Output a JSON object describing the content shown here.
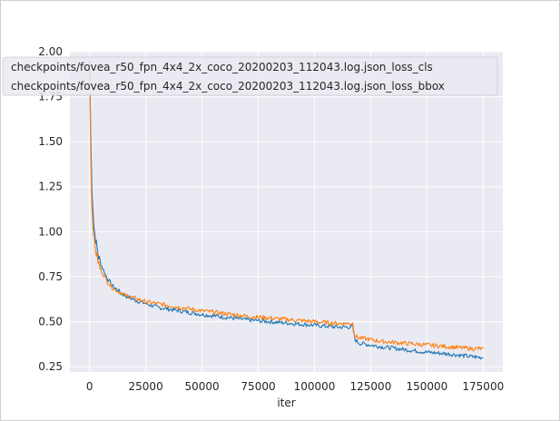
{
  "chart_data": {
    "type": "line",
    "title": "",
    "xlabel": "iter",
    "ylabel": "",
    "xlim": [
      -8750,
      183750
    ],
    "ylim": [
      0.22,
      2.0
    ],
    "grid": true,
    "legend_placement": "upper-left",
    "x_ticks": [
      {
        "value": 0,
        "label": "0"
      },
      {
        "value": 25000,
        "label": "25000"
      },
      {
        "value": 50000,
        "label": "50000"
      },
      {
        "value": 75000,
        "label": "75000"
      },
      {
        "value": 100000,
        "label": "100000"
      },
      {
        "value": 125000,
        "label": "125000"
      },
      {
        "value": 150000,
        "label": "150000"
      },
      {
        "value": 175000,
        "label": "175000"
      }
    ],
    "y_ticks": [
      {
        "value": 0.25,
        "label": "0.25"
      },
      {
        "value": 0.5,
        "label": "0.50"
      },
      {
        "value": 0.75,
        "label": "0.75"
      },
      {
        "value": 1.0,
        "label": "1.00"
      },
      {
        "value": 1.25,
        "label": "1.25"
      },
      {
        "value": 1.5,
        "label": "1.50"
      },
      {
        "value": 1.75,
        "label": "1.75"
      },
      {
        "value": 2.0,
        "label": "2.00"
      }
    ],
    "series": [
      {
        "name": "checkpoints/fovea_r50_fpn_4x4_2x_coco_20200203_112043.log.json_loss_cls",
        "color": "#1f77b4",
        "x": [
          0,
          500,
          1000,
          2000,
          3000,
          4000,
          5000,
          7500,
          10000,
          15000,
          20000,
          25000,
          30000,
          40000,
          50000,
          60000,
          70000,
          80000,
          90000,
          100000,
          110000,
          117000,
          118000,
          120000,
          130000,
          140000,
          150000,
          160000,
          170000,
          175000
        ],
        "y": [
          1.95,
          1.55,
          1.25,
          1.02,
          0.93,
          0.86,
          0.82,
          0.75,
          0.7,
          0.65,
          0.62,
          0.6,
          0.58,
          0.56,
          0.54,
          0.525,
          0.51,
          0.5,
          0.49,
          0.48,
          0.47,
          0.47,
          0.4,
          0.38,
          0.36,
          0.345,
          0.33,
          0.32,
          0.305,
          0.3
        ]
      },
      {
        "name": "checkpoints/fovea_r50_fpn_4x4_2x_coco_20200203_112043.log.json_loss_bbox",
        "color": "#ff7f0e",
        "x": [
          0,
          500,
          1000,
          2000,
          3000,
          4000,
          5000,
          7500,
          10000,
          15000,
          20000,
          25000,
          30000,
          40000,
          50000,
          60000,
          70000,
          80000,
          90000,
          100000,
          110000,
          117000,
          118000,
          120000,
          130000,
          140000,
          150000,
          160000,
          170000,
          175000
        ],
        "y": [
          1.9,
          1.45,
          1.15,
          0.95,
          0.88,
          0.82,
          0.79,
          0.73,
          0.69,
          0.65,
          0.63,
          0.61,
          0.6,
          0.58,
          0.56,
          0.545,
          0.53,
          0.52,
          0.51,
          0.5,
          0.49,
          0.49,
          0.42,
          0.41,
          0.39,
          0.38,
          0.37,
          0.36,
          0.35,
          0.35
        ]
      }
    ]
  }
}
